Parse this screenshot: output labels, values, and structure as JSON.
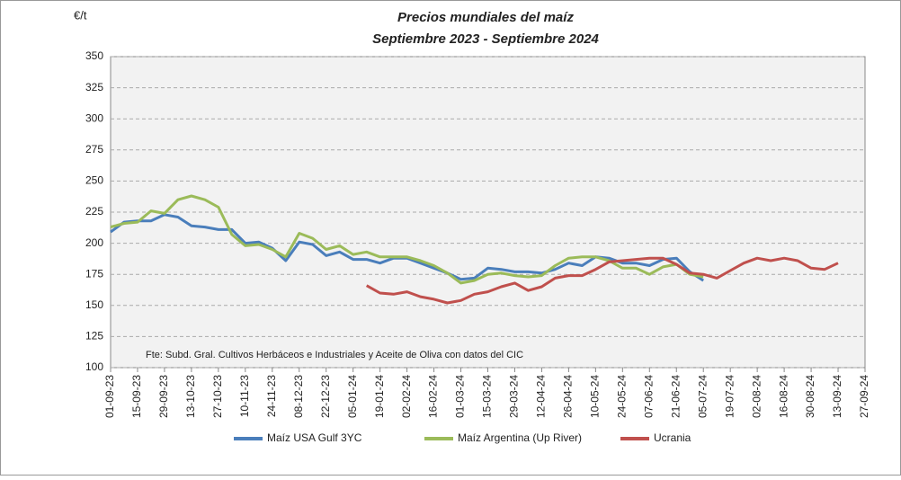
{
  "chart_data": {
    "type": "line",
    "title": "Precios mundiales del maíz",
    "subtitle": "Septiembre 2023 - Septiembre 2024",
    "y_label": "€/t",
    "annotation": "Fte: Subd. Gral. Cultivos Herbáceos e Industriales y Aceite de Oliva con datos del CIC",
    "categories": [
      "01-09-23",
      null,
      "15-09-23",
      null,
      "29-09-23",
      null,
      "13-10-23",
      null,
      "27-10-23",
      null,
      "10-11-23",
      null,
      "24-11-23",
      null,
      "08-12-23",
      null,
      "22-12-23",
      null,
      "05-01-24",
      null,
      "19-01-24",
      null,
      "02-02-24",
      null,
      "16-02-24",
      null,
      "01-03-24",
      null,
      "15-03-24",
      null,
      "29-03-24",
      null,
      "12-04-24",
      null,
      "26-04-24",
      null,
      "10-05-24",
      null,
      "24-05-24",
      null,
      "07-06-24",
      null,
      "21-06-24",
      null,
      "05-07-24",
      null,
      "19-07-24",
      null,
      "02-08-24",
      null,
      "16-08-24",
      null,
      "30-08-24",
      null,
      "13-09-24",
      null,
      "27-09-24"
    ],
    "series": [
      {
        "name": "Maíz USA Gulf 3YC",
        "color": "#4a7ebb",
        "values": [
          209,
          217,
          218,
          218,
          223,
          221,
          214,
          213,
          211,
          211,
          200,
          201,
          196,
          186,
          201,
          199,
          190,
          193,
          187,
          187,
          184,
          188,
          188,
          184,
          180,
          176,
          171,
          172,
          180,
          179,
          177,
          177,
          176,
          179,
          184,
          182,
          189,
          188,
          184,
          184,
          182,
          187,
          188,
          177,
          170,
          null,
          null,
          null,
          null,
          null,
          null,
          null,
          null,
          null,
          null,
          null,
          null
        ]
      },
      {
        "name": "Maíz Argentina (Up River)",
        "color": "#9bbb59",
        "values": [
          213,
          216,
          217,
          226,
          224,
          235,
          238,
          235,
          229,
          207,
          198,
          199,
          195,
          189,
          208,
          204,
          195,
          198,
          191,
          193,
          189,
          189,
          189,
          186,
          182,
          176,
          168,
          170,
          175,
          176,
          174,
          173,
          174,
          182,
          188,
          189,
          189,
          186,
          180,
          180,
          175,
          181,
          183,
          175,
          173,
          null,
          null,
          null,
          null,
          null,
          null,
          null,
          null,
          null,
          null,
          null,
          null
        ]
      },
      {
        "name": "Ucrania",
        "color": "#c0504d",
        "values": [
          null,
          null,
          null,
          null,
          null,
          null,
          null,
          null,
          null,
          null,
          null,
          null,
          null,
          null,
          null,
          null,
          null,
          null,
          null,
          166,
          160,
          159,
          161,
          157,
          155,
          152,
          154,
          159,
          161,
          165,
          168,
          162,
          165,
          172,
          174,
          174,
          179,
          185,
          186,
          187,
          188,
          188,
          183,
          176,
          175,
          172,
          178,
          184,
          188,
          186,
          188,
          186,
          180,
          179,
          184,
          null,
          null
        ]
      }
    ],
    "ylim": [
      100,
      350
    ],
    "yticks": [
      100,
      125,
      150,
      175,
      200,
      225,
      250,
      275,
      300,
      325,
      350
    ],
    "grid": true
  }
}
